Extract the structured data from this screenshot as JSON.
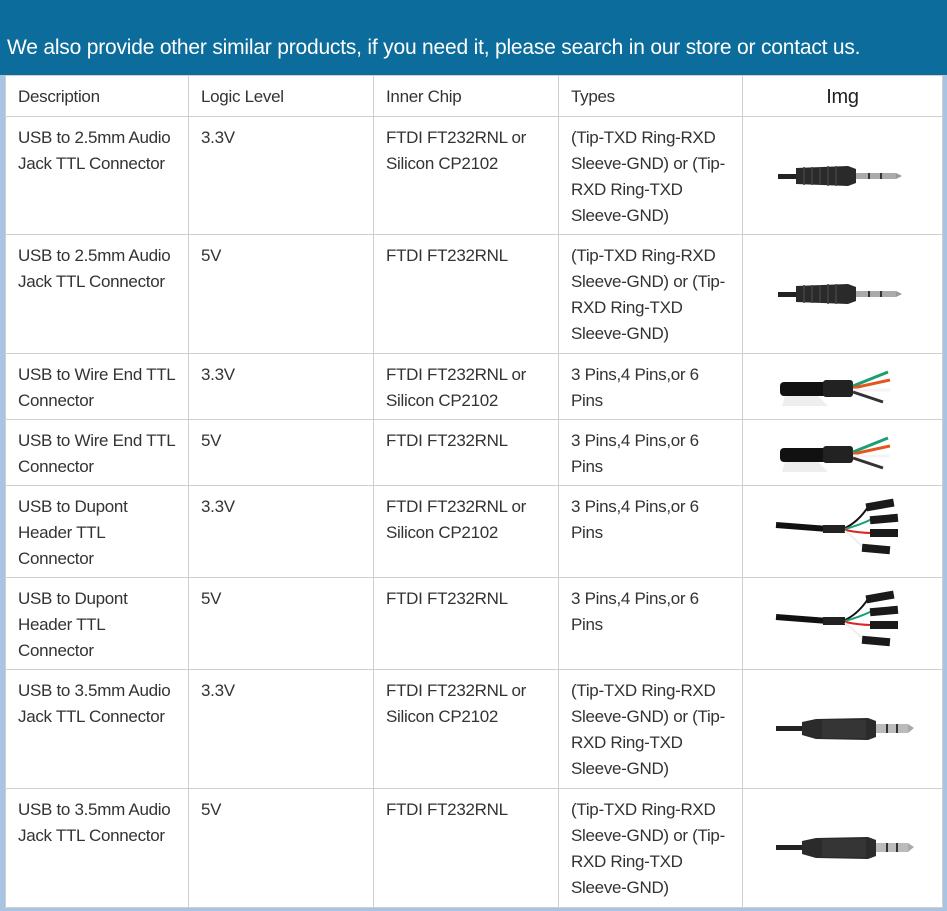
{
  "banner": {
    "text": "We also provide other similar products, if you need it, please search in our store or contact us."
  },
  "table": {
    "headers": [
      "Description",
      "Logic Level",
      "Inner Chip",
      "Types",
      "Img"
    ],
    "rows": [
      {
        "description": "USB to 2.5mm Audio Jack TTL Connector",
        "logic": "3.3V",
        "chip": "FTDI FT232RNL or Silicon CP2102",
        "types": "(Tip-TXD Ring-RXD Sleeve-GND) or (Tip-RXD Ring-TXD Sleeve-GND)",
        "img": "jack-2.5mm"
      },
      {
        "description": "USB to 2.5mm Audio Jack TTL Connector",
        "logic": "5V",
        "chip": "FTDI FT232RNL",
        "types": "(Tip-TXD Ring-RXD Sleeve-GND) or (Tip-RXD Ring-TXD Sleeve-GND)",
        "img": "jack-2.5mm"
      },
      {
        "description": "USB to Wire End TTL Connector",
        "logic": "3.3V",
        "chip": "FTDI FT232RNL or Silicon CP2102",
        "types": "3 Pins,4 Pins,or 6 Pins",
        "img": "wire-end"
      },
      {
        "description": "USB to Wire End TTL Connector",
        "logic": "5V",
        "chip": "FTDI FT232RNL",
        "types": "3 Pins,4 Pins,or 6 Pins",
        "img": "wire-end"
      },
      {
        "description": "USB to Dupont Header TTL Connector",
        "logic": "3.3V",
        "chip": "FTDI FT232RNL or Silicon CP2102",
        "types": "3 Pins,4 Pins,or 6 Pins",
        "img": "dupont"
      },
      {
        "description": "USB to Dupont Header TTL Connector",
        "logic": "5V",
        "chip": "FTDI FT232RNL",
        "types": "3 Pins,4 Pins,or 6 Pins",
        "img": "dupont"
      },
      {
        "description": "USB to 3.5mm Audio Jack TTL Connector",
        "logic": "3.3V",
        "chip": "FTDI FT232RNL or Silicon CP2102",
        "types": "(Tip-TXD Ring-RXD Sleeve-GND) or (Tip-RXD Ring-TXD Sleeve-GND)",
        "img": "jack-3.5mm"
      },
      {
        "description": "USB to 3.5mm Audio Jack TTL Connector",
        "logic": "5V",
        "chip": "FTDI FT232RNL",
        "types": "(Tip-TXD Ring-RXD Sleeve-GND) or (Tip-RXD Ring-TXD Sleeve-GND)",
        "img": "jack-3.5mm"
      }
    ]
  }
}
